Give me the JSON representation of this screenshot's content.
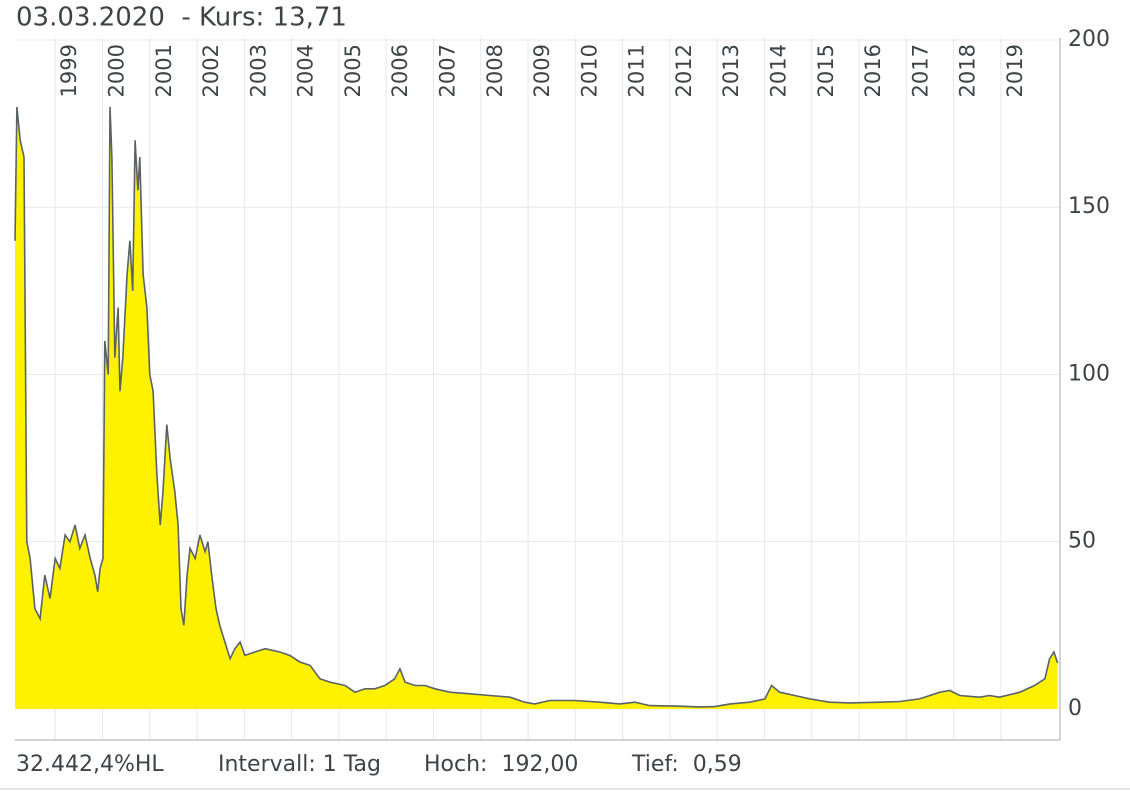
{
  "chart_data": {
    "type": "area",
    "title": "03.03.2020  - Kurs: 13,71",
    "annotations": [
      "32.442,4%HL",
      "Intervall: 1 Tag",
      "Hoch:  192,00",
      "Tief:  0,59"
    ],
    "x": [
      1998.15,
      1998.19,
      1998.26,
      1998.34,
      1998.4,
      1998.47,
      1998.57,
      1998.68,
      1998.78,
      1998.89,
      1999.0,
      1999.1,
      1999.21,
      1999.31,
      1999.42,
      1999.52,
      1999.63,
      1999.74,
      1999.84,
      1999.9,
      1999.95,
      2000.01,
      2000.05,
      2000.12,
      2000.16,
      2000.2,
      2000.26,
      2000.33,
      2000.37,
      2000.43,
      2000.52,
      2000.58,
      2000.64,
      2000.69,
      2000.75,
      2000.79,
      2000.86,
      2000.94,
      2001.0,
      2001.07,
      2001.15,
      2001.22,
      2001.28,
      2001.36,
      2001.43,
      2001.53,
      2001.6,
      2001.66,
      2001.72,
      2001.79,
      2001.85,
      2001.96,
      2002.06,
      2002.17,
      2002.23,
      2002.31,
      2002.4,
      2002.48,
      2002.59,
      2002.7,
      2002.8,
      2002.91,
      2003.01,
      2003.22,
      2003.44,
      2003.75,
      2003.96,
      2004.18,
      2004.39,
      2004.6,
      2004.81,
      2005.13,
      2005.34,
      2005.55,
      2005.76,
      2005.97,
      2006.18,
      2006.29,
      2006.4,
      2006.61,
      2006.82,
      2007.03,
      2007.35,
      2007.77,
      2008.19,
      2008.62,
      2008.93,
      2009.14,
      2009.46,
      2009.99,
      2010.52,
      2010.94,
      2011.26,
      2011.57,
      2012.21,
      2012.63,
      2012.95,
      2013.27,
      2013.69,
      2014.01,
      2014.15,
      2014.32,
      2014.64,
      2014.96,
      2015.38,
      2015.8,
      2016.44,
      2016.86,
      2017.28,
      2017.71,
      2017.92,
      2018.13,
      2018.55,
      2018.76,
      2018.97,
      2019.4,
      2019.71,
      2019.93,
      2020.03,
      2020.12,
      2020.2
    ],
    "series": [
      {
        "color": "#fff200",
        "line_color": "#5a6266",
        "values": [
          140,
          180,
          170,
          165,
          50,
          45,
          30,
          27,
          40,
          33,
          45,
          42,
          52,
          50,
          55,
          48,
          52,
          45,
          40,
          35,
          42,
          45,
          110,
          100,
          180,
          165,
          105,
          120,
          95,
          105,
          130,
          140,
          125,
          170,
          155,
          165,
          130,
          120,
          100,
          95,
          70,
          55,
          65,
          85,
          75,
          65,
          55,
          30,
          25,
          40,
          48,
          45,
          52,
          47,
          50,
          40,
          30,
          25,
          20,
          15,
          18,
          20,
          16,
          17,
          18,
          17,
          16,
          14,
          13,
          9,
          8,
          7,
          5,
          6,
          6,
          7,
          9,
          12,
          8,
          7,
          7,
          6,
          5,
          4.5,
          4,
          3.5,
          2,
          1.5,
          2.5,
          2.5,
          2,
          1.5,
          2,
          1,
          0.8,
          0.6,
          0.7,
          1.5,
          2,
          3,
          7,
          5,
          4,
          3,
          2,
          1.8,
          2,
          2.2,
          3,
          5,
          5.5,
          4,
          3.5,
          4,
          3.5,
          5,
          7,
          9,
          15,
          17,
          13.71
        ]
      }
    ],
    "xlim": [
      1998.15,
      2020.25
    ],
    "ylim": [
      -9.3,
      200.6
    ],
    "xticks": [
      1999,
      2000,
      2001,
      2002,
      2003,
      2004,
      2005,
      2006,
      2007,
      2008,
      2009,
      2010,
      2011,
      2012,
      2013,
      2014,
      2015,
      2016,
      2017,
      2018,
      2019
    ],
    "yticks": [
      0,
      50,
      100,
      150,
      200
    ],
    "grid": true
  }
}
